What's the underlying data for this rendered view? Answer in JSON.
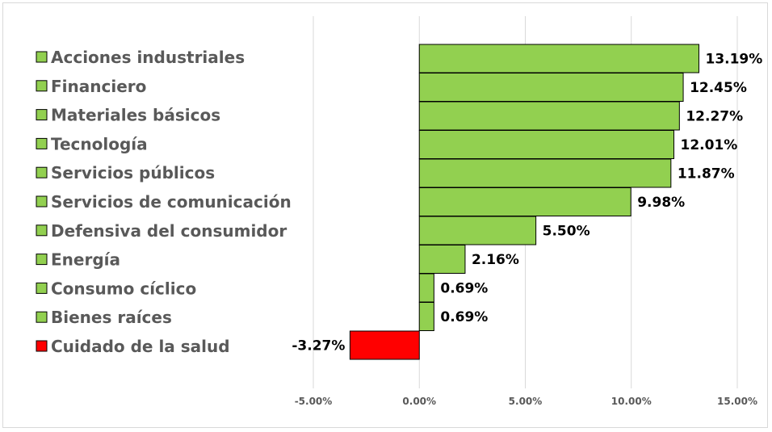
{
  "chart_data": {
    "type": "bar",
    "orientation": "horizontal",
    "categories": [
      "Acciones industriales",
      "Financiero",
      "Materiales básicos",
      "Tecnología",
      "Servicios públicos",
      "Servicios de comunicación",
      "Defensiva del consumidor",
      "Energía",
      "Consumo cíclico",
      "Bienes raíces",
      "Cuidado de la salud"
    ],
    "values": [
      13.19,
      12.45,
      12.27,
      12.01,
      11.87,
      9.98,
      5.5,
      2.16,
      0.69,
      0.69,
      -3.27
    ],
    "data_labels": [
      "13.19%",
      "12.45%",
      "12.27%",
      "12.01%",
      "11.87%",
      "9.98%",
      "5.50%",
      "2.16%",
      "0.69%",
      "0.69%",
      "-3.27%"
    ],
    "xlim": [
      -5,
      15
    ],
    "x_ticks": [
      -5,
      0,
      5,
      10,
      15
    ],
    "x_tick_labels": [
      "-5.00%",
      "0.00%",
      "5.00%",
      "10.00%",
      "15.00%"
    ],
    "grid": "vertical",
    "legend_position": "left",
    "title": "",
    "xlabel": "",
    "ylabel": "",
    "colors": {
      "positive": "#92d050",
      "negative": "#ff0000",
      "bar_border": "#000000",
      "grid": "#d9d9d9",
      "label_text": "#595959"
    }
  }
}
